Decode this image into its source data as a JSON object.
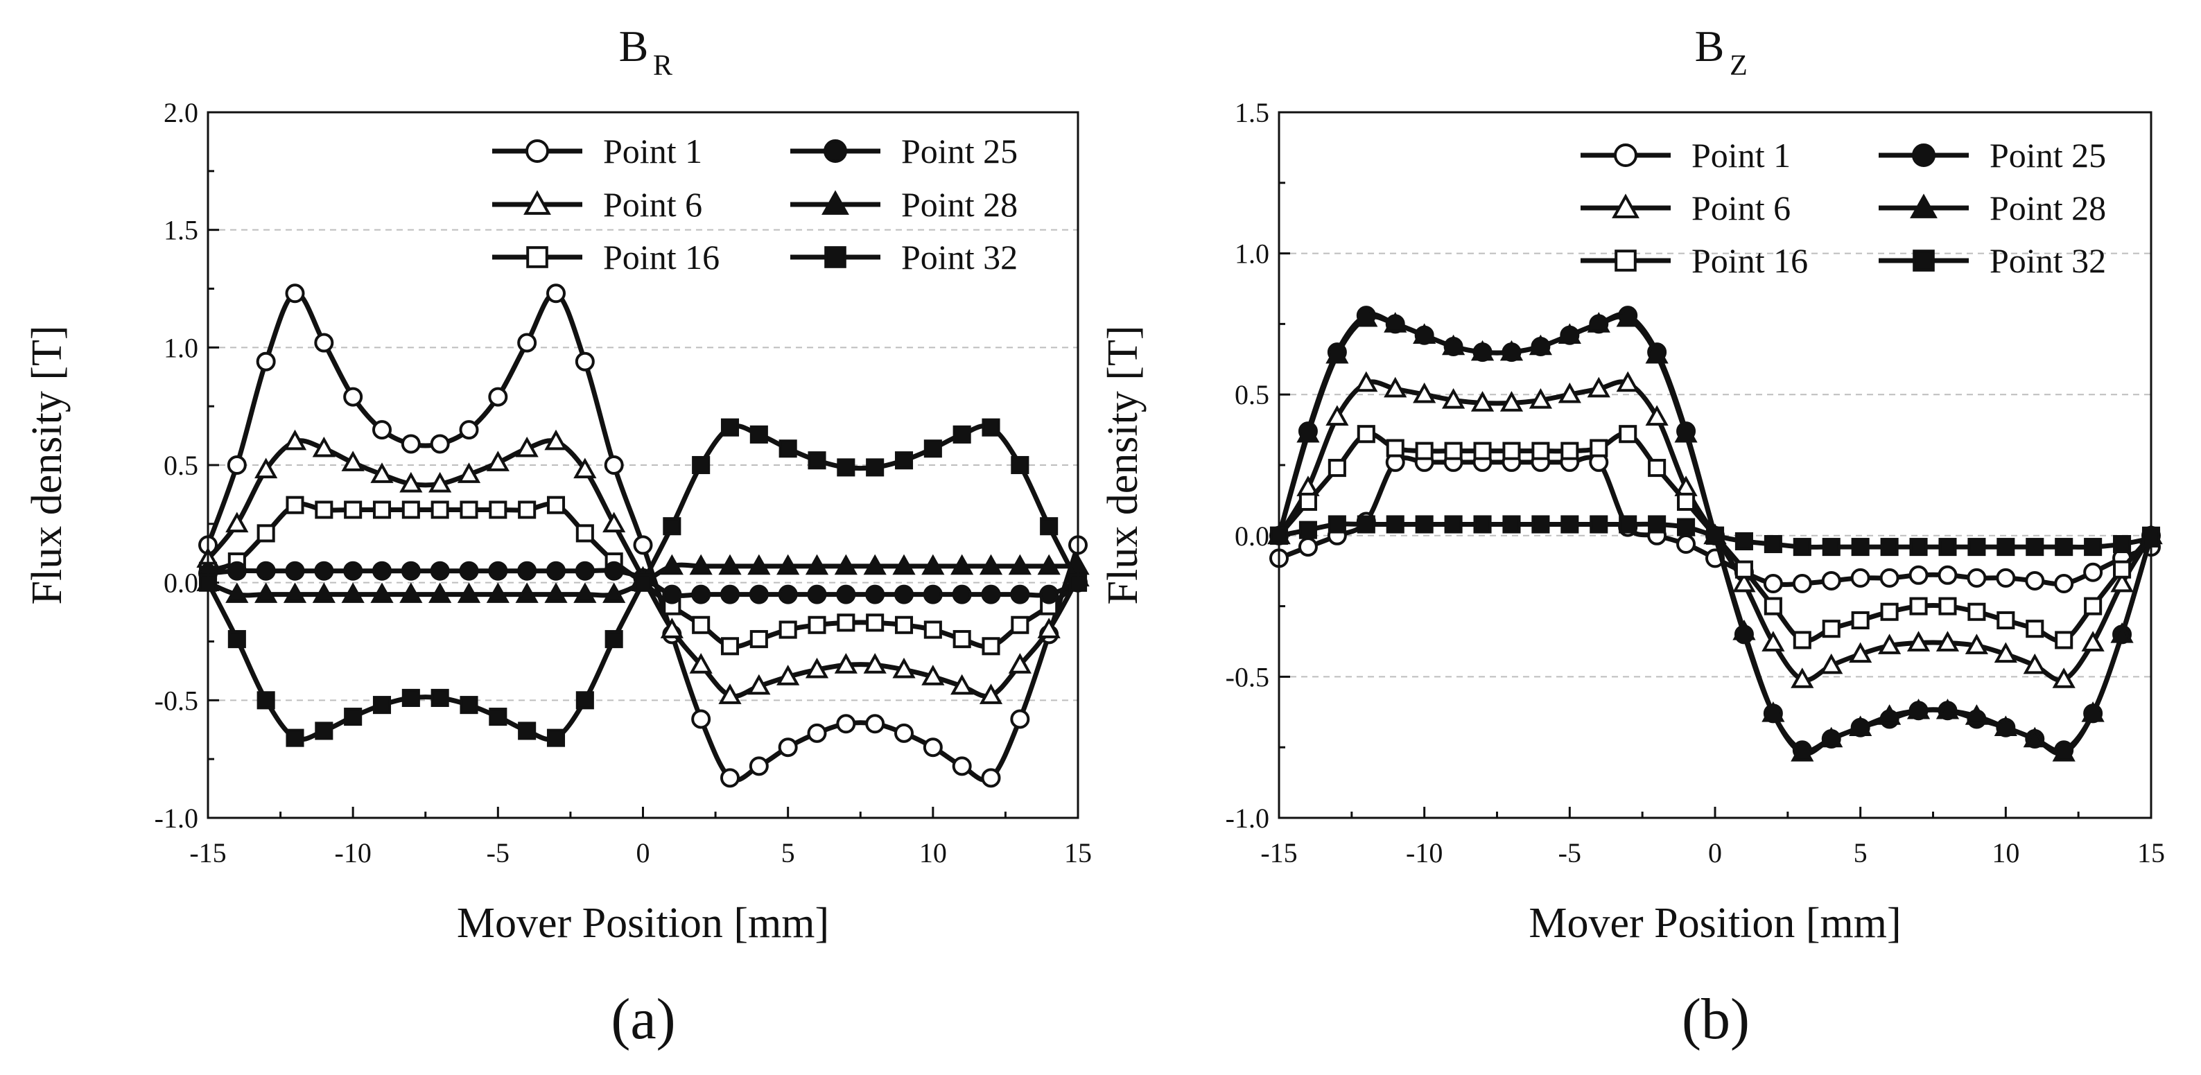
{
  "figure": {
    "label_a": "(a)",
    "label_b": "(b)"
  },
  "chart_data": [
    {
      "type": "line",
      "panel": "(a)",
      "title_main": "B",
      "title_sub": "R",
      "xlabel": "Mover Position [mm]",
      "ylabel": "Flux density [T]",
      "xlim": [
        -15,
        15
      ],
      "ylim": [
        -1.0,
        2.0
      ],
      "xticks": [
        -15,
        -10,
        -5,
        0,
        5,
        10,
        15
      ],
      "yticks": [
        -1.0,
        -0.5,
        0.0,
        0.5,
        1.0,
        1.5,
        2.0
      ],
      "grid": "dashed horizontal",
      "legend_position": "top-right",
      "x": [
        -15,
        -14,
        -13,
        -12,
        -11,
        -10,
        -9,
        -8,
        -7,
        -6,
        -5,
        -4,
        -3,
        -2,
        -1,
        0,
        1,
        2,
        3,
        4,
        5,
        6,
        7,
        8,
        9,
        10,
        11,
        12,
        13,
        14,
        15
      ],
      "series": [
        {
          "name": "Point 1",
          "marker": "circle",
          "filled": false,
          "values": [
            0.16,
            0.5,
            0.94,
            1.23,
            1.02,
            0.79,
            0.65,
            0.59,
            0.59,
            0.65,
            0.79,
            1.02,
            1.23,
            0.94,
            0.5,
            0.16,
            -0.22,
            -0.58,
            -0.83,
            -0.78,
            -0.7,
            -0.64,
            -0.6,
            -0.6,
            -0.64,
            -0.7,
            -0.78,
            -0.83,
            -0.58,
            -0.22,
            0.16
          ]
        },
        {
          "name": "Point 6",
          "marker": "triangle",
          "filled": false,
          "values": [
            0.1,
            0.25,
            0.48,
            0.6,
            0.57,
            0.51,
            0.46,
            0.42,
            0.42,
            0.46,
            0.51,
            0.57,
            0.6,
            0.48,
            0.25,
            0.02,
            -0.2,
            -0.35,
            -0.48,
            -0.44,
            -0.4,
            -0.37,
            -0.35,
            -0.35,
            -0.37,
            -0.4,
            -0.44,
            -0.48,
            -0.35,
            -0.2,
            0.02
          ]
        },
        {
          "name": "Point 16",
          "marker": "square",
          "filled": false,
          "values": [
            0.05,
            0.09,
            0.21,
            0.33,
            0.31,
            0.31,
            0.31,
            0.31,
            0.31,
            0.31,
            0.31,
            0.31,
            0.33,
            0.21,
            0.09,
            0.0,
            -0.1,
            -0.18,
            -0.27,
            -0.24,
            -0.2,
            -0.18,
            -0.17,
            -0.17,
            -0.18,
            -0.2,
            -0.24,
            -0.27,
            -0.18,
            -0.1,
            0.0
          ]
        },
        {
          "name": "Point 25",
          "marker": "circle",
          "filled": true,
          "values": [
            0.04,
            0.05,
            0.05,
            0.05,
            0.05,
            0.05,
            0.05,
            0.05,
            0.05,
            0.05,
            0.05,
            0.05,
            0.05,
            0.05,
            0.05,
            0.02,
            -0.05,
            -0.05,
            -0.05,
            -0.05,
            -0.05,
            -0.05,
            -0.05,
            -0.05,
            -0.05,
            -0.05,
            -0.05,
            -0.05,
            -0.05,
            -0.05,
            0.0
          ]
        },
        {
          "name": "Point 28",
          "marker": "triangle",
          "filled": true,
          "values": [
            0.0,
            -0.05,
            -0.05,
            -0.05,
            -0.05,
            -0.05,
            -0.05,
            -0.05,
            -0.05,
            -0.05,
            -0.05,
            -0.05,
            -0.05,
            -0.05,
            -0.05,
            0.0,
            0.07,
            0.07,
            0.07,
            0.07,
            0.07,
            0.07,
            0.07,
            0.07,
            0.07,
            0.07,
            0.07,
            0.07,
            0.07,
            0.07,
            0.07
          ]
        },
        {
          "name": "Point 32",
          "marker": "square",
          "filled": true,
          "values": [
            0.0,
            -0.24,
            -0.5,
            -0.66,
            -0.63,
            -0.57,
            -0.52,
            -0.49,
            -0.49,
            -0.52,
            -0.57,
            -0.63,
            -0.66,
            -0.5,
            -0.24,
            0.0,
            0.24,
            0.5,
            0.66,
            0.63,
            0.57,
            0.52,
            0.49,
            0.49,
            0.52,
            0.57,
            0.63,
            0.66,
            0.5,
            0.24,
            0.0
          ]
        }
      ]
    },
    {
      "type": "line",
      "panel": "(b)",
      "title_main": "B",
      "title_sub": "Z",
      "xlabel": "Mover Position [mm]",
      "ylabel": "Flux density [T]",
      "xlim": [
        -15,
        15
      ],
      "ylim": [
        -1.0,
        1.5
      ],
      "xticks": [
        -15,
        -10,
        -5,
        0,
        5,
        10,
        15
      ],
      "yticks": [
        -1.0,
        -0.5,
        0.0,
        0.5,
        1.0,
        1.5
      ],
      "grid": "dashed horizontal",
      "legend_position": "top-right",
      "x": [
        -15,
        -14,
        -13,
        -12,
        -11,
        -10,
        -9,
        -8,
        -7,
        -6,
        -5,
        -4,
        -3,
        -2,
        -1,
        0,
        1,
        2,
        3,
        4,
        5,
        6,
        7,
        8,
        9,
        10,
        11,
        12,
        13,
        14,
        15
      ],
      "series": [
        {
          "name": "Point 1",
          "marker": "circle",
          "filled": false,
          "values": [
            -0.08,
            -0.04,
            0.0,
            0.05,
            0.26,
            0.26,
            0.26,
            0.26,
            0.26,
            0.26,
            0.26,
            0.26,
            0.03,
            0.0,
            -0.03,
            -0.08,
            -0.13,
            -0.17,
            -0.17,
            -0.16,
            -0.15,
            -0.15,
            -0.14,
            -0.14,
            -0.15,
            -0.15,
            -0.16,
            -0.17,
            -0.13,
            -0.08,
            -0.04
          ]
        },
        {
          "name": "Point 6",
          "marker": "triangle",
          "filled": false,
          "values": [
            0.0,
            0.17,
            0.42,
            0.54,
            0.52,
            0.5,
            0.48,
            0.47,
            0.47,
            0.48,
            0.5,
            0.52,
            0.54,
            0.42,
            0.17,
            0.0,
            -0.17,
            -0.38,
            -0.51,
            -0.46,
            -0.42,
            -0.39,
            -0.38,
            -0.38,
            -0.39,
            -0.42,
            -0.46,
            -0.51,
            -0.38,
            -0.17,
            0.0
          ]
        },
        {
          "name": "Point 16",
          "marker": "square",
          "filled": false,
          "values": [
            0.0,
            0.12,
            0.24,
            0.36,
            0.31,
            0.3,
            0.3,
            0.3,
            0.3,
            0.3,
            0.3,
            0.31,
            0.36,
            0.24,
            0.12,
            0.0,
            -0.12,
            -0.25,
            -0.37,
            -0.33,
            -0.3,
            -0.27,
            -0.25,
            -0.25,
            -0.27,
            -0.3,
            -0.33,
            -0.37,
            -0.25,
            -0.12,
            0.0
          ]
        },
        {
          "name": "Point 25",
          "marker": "circle",
          "filled": true,
          "values": [
            0.0,
            0.37,
            0.65,
            0.78,
            0.75,
            0.71,
            0.67,
            0.65,
            0.65,
            0.67,
            0.71,
            0.75,
            0.78,
            0.65,
            0.37,
            0.0,
            -0.35,
            -0.63,
            -0.76,
            -0.72,
            -0.68,
            -0.65,
            -0.62,
            -0.62,
            -0.65,
            -0.68,
            -0.72,
            -0.76,
            -0.63,
            -0.35,
            0.0
          ]
        },
        {
          "name": "Point 28",
          "marker": "triangle",
          "filled": true,
          "values": [
            0.0,
            0.36,
            0.64,
            0.77,
            0.75,
            0.71,
            0.67,
            0.65,
            0.65,
            0.67,
            0.71,
            0.75,
            0.77,
            0.64,
            0.36,
            0.0,
            -0.34,
            -0.63,
            -0.77,
            -0.72,
            -0.68,
            -0.64,
            -0.62,
            -0.62,
            -0.64,
            -0.68,
            -0.72,
            -0.77,
            -0.63,
            -0.35,
            0.0
          ]
        },
        {
          "name": "Point 32",
          "marker": "square",
          "filled": true,
          "values": [
            0.0,
            0.02,
            0.04,
            0.04,
            0.04,
            0.04,
            0.04,
            0.04,
            0.04,
            0.04,
            0.04,
            0.04,
            0.04,
            0.04,
            0.03,
            0.0,
            -0.02,
            -0.03,
            -0.04,
            -0.04,
            -0.04,
            -0.04,
            -0.04,
            -0.04,
            -0.04,
            -0.04,
            -0.04,
            -0.04,
            -0.04,
            -0.03,
            -0.01
          ]
        }
      ]
    }
  ]
}
